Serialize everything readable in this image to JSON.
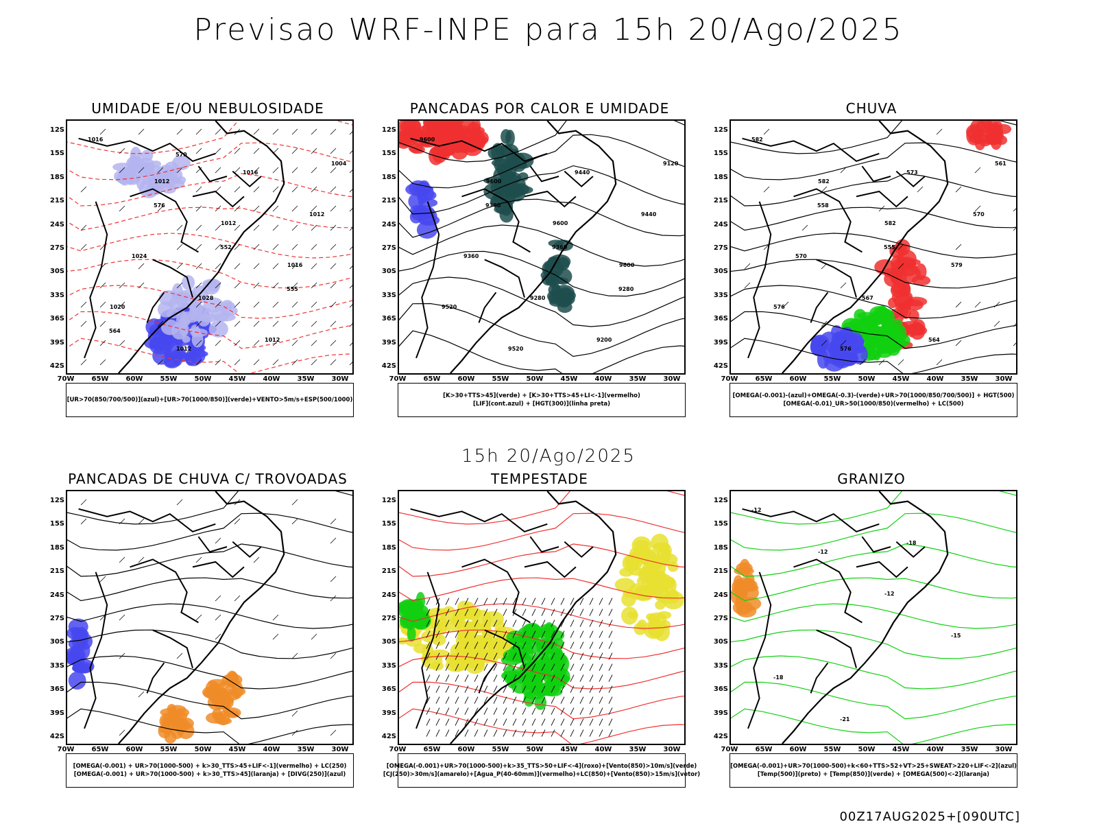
{
  "header": {
    "title": "Previsao WRF-INPE  para 15h 20/Ago/2025",
    "middle_title": "15h 20/Ago/2025",
    "footer": "00Z17AUG2025+[090UTC]"
  },
  "axes": {
    "lat_ticks": [
      "12S",
      "15S",
      "18S",
      "21S",
      "24S",
      "27S",
      "30S",
      "33S",
      "36S",
      "39S",
      "42S"
    ],
    "lon_ticks": [
      "70W",
      "65W",
      "60W",
      "55W",
      "50W",
      "45W",
      "40W",
      "35W",
      "30W"
    ]
  },
  "colors": {
    "blue": "#4848f0",
    "light_blue": "#b4b4f0",
    "green": "#10d010",
    "red": "#f03030",
    "dark_teal": "#1f4e4e",
    "orange": "#f08c28",
    "yellow": "#e8e030"
  },
  "panels": [
    {
      "title": "UMIDADE E/OU NEBULOSIDADE",
      "legend": [
        "[UR>70(850/700/500)](azul)+[UR>70(1000/850)](verde)+VENTO>5m/s+ESP(500/1000)"
      ],
      "contour_labels": [
        "1016",
        "1012",
        "1012",
        "1016",
        "1020",
        "1012",
        "1016",
        "1012",
        "1024",
        "1028",
        "1012",
        "1004",
        "576",
        "552",
        "555",
        "564",
        "570"
      ]
    },
    {
      "title": "PANCADAS POR CALOR E UMIDADE",
      "legend": [
        "[K>30+TTS>45](verde) + [K>30+TTS>45+LI<-1](vermelho)",
        "[LIF](cont.azul) + [HGT(300)](linha preta)"
      ],
      "contour_labels": [
        "9600",
        "9600",
        "9600",
        "9600",
        "9520",
        "9520",
        "9440",
        "9440",
        "9360",
        "9280",
        "9200",
        "9120",
        "9360",
        "9360",
        "9280"
      ]
    },
    {
      "title": "CHUVA",
      "legend": [
        "[OMEGA(-0.001)-(azul)+OMEGA(-0.3)-(verde)+UR>70(1000/850/700/500)] + HGT(500)",
        "[OMEGA(-0.01)_UR>50(1000/850)(vermelho) + LC(500)"
      ],
      "contour_labels": [
        "582",
        "582",
        "582",
        "579",
        "576",
        "576",
        "573",
        "570",
        "570",
        "567",
        "564",
        "561",
        "558",
        "555"
      ]
    },
    {
      "title": "PANCADAS DE CHUVA C/ TROVOADAS",
      "legend": [
        "[OMEGA(-0.001) + UR>70(1000-500) + k>30_TTS>45+LIF<-1](vermelho) + LC(250)",
        "[OMEGA(-0.001) + UR>70(1000-500) + k>30_TTS>45](laranja) + [DIVG(250)](azul)"
      ],
      "contour_labels": []
    },
    {
      "title": "TEMPESTADE",
      "legend": [
        "[OMEGA(-0.001)+UR>70(1000-500)+k>35_TTS>50+LIF<-4](roxo)+[Vento(850)>10m/s](verde)",
        "[CJ(250)>30m/s](amarelo)+[Agua_P(40-60mm)](vermelho)+LC(850)+[Vento(850)>15m/s](vetor)"
      ],
      "contour_labels": []
    },
    {
      "title": "GRANIZO",
      "legend": [
        "[OMEGA(-0.001)+UR>70(1000-500)+k<60+TTS>52+VT>25+SWEAT>220+LIF<-2](azul)",
        "[Temp(500)](preto) + [Temp(850)](verde) + [OMEGA(500)<-2](laranja)"
      ],
      "contour_labels": [
        "-12",
        "-12",
        "-12",
        "-15",
        "-18",
        "-21",
        "-18"
      ]
    }
  ]
}
